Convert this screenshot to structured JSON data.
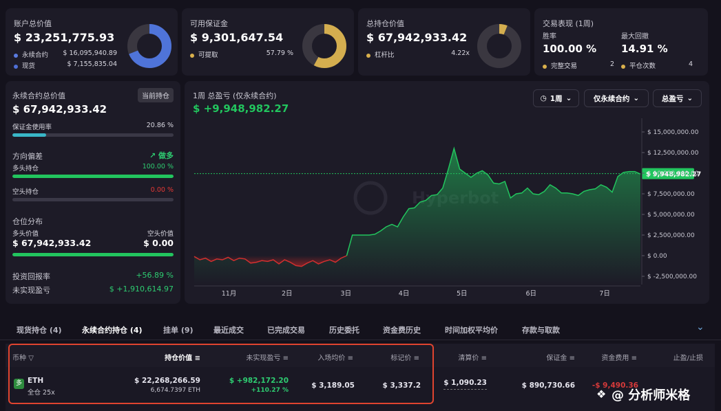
{
  "account": {
    "title": "账户总价值",
    "value": "$ 23,251,775.93",
    "items": [
      {
        "label": "永续合约",
        "value": "$ 16,095,940.89",
        "color": "#5a7be0"
      },
      {
        "label": "现货",
        "value": "$ 7,155,835.04",
        "color": "#4f6fd6"
      }
    ],
    "donut_fraction": 0.69,
    "donut_color": "#4f74d9"
  },
  "margin": {
    "title": "可用保证金",
    "value": "$ 9,301,647.54",
    "items": [
      {
        "label": "可提取",
        "value": "57.79 %",
        "color": "#d9b04c"
      }
    ],
    "donut_fraction": 0.5779,
    "donut_color": "#d4ae4f"
  },
  "position": {
    "title": "总持仓价值",
    "value": "$ 67,942,933.42",
    "items": [
      {
        "label": "杠杆比",
        "value": "4.22x",
        "color": "#d9b04c"
      }
    ],
    "donut_fraction": 0.06,
    "donut_color": "#d4ae4f"
  },
  "performance": {
    "title": "交易表现 (1周)",
    "win_label": "胜率",
    "win_value": "100.00 %",
    "dd_label": "最大回撤",
    "dd_value": "14.91 %",
    "completed_label": "完整交易",
    "completed_value": "2",
    "closed_label": "平仓次数",
    "closed_value": "4"
  },
  "perp": {
    "title": "永续合约总价值",
    "badge": "当前持仓",
    "value": "$ 67,942,933.42",
    "margin_label": "保证金使用率",
    "margin_value": "20.86 %",
    "margin_fraction": 0.2086,
    "bias_label": "方向偏差",
    "bias_value": "做多",
    "long_label": "多头持仓",
    "long_value": "100.00 %",
    "long_fraction": 1.0,
    "short_label": "空头持仓",
    "short_value": "0.00 %",
    "short_fraction": 0.0,
    "dist_label": "仓位分布",
    "long_val_label": "多头价值",
    "long_val": "$ 67,942,933.42",
    "short_val_label": "空头价值",
    "short_val": "$ 0.00",
    "roi_label": "投资回报率",
    "roi_value": "+56.89 %",
    "unreal_label": "未实现盈亏",
    "unreal_value": "$ +1,910,614.97"
  },
  "pnl_chart": {
    "title": "1周 总盈亏 (仅永续合约)",
    "value": "$ +9,948,982.27",
    "btn_period": "1周",
    "btn_scope": "仅永续合约",
    "btn_type": "总盈亏",
    "watermark": "Hyperbot"
  },
  "chart_data": {
    "type": "area",
    "title": "1周 总盈亏 (仅永续合约)",
    "x_ticks": [
      "11月",
      "2日",
      "3日",
      "4日",
      "5日",
      "6日",
      "7日"
    ],
    "y_ticks": [
      "$ 15,000,000.00",
      "$ 12,500,000.00",
      "$ 10,000,000.00",
      "$ 7,500,000.00",
      "$ 5,000,000.00",
      "$ 2,500,000.00",
      "$ 0.00",
      "$ -2,500,000.00"
    ],
    "ylim": [
      -3500000,
      16000000
    ],
    "current_label": "$ 9,948,982.27",
    "current": 9948982,
    "values": [
      -100000,
      -500000,
      -300000,
      -700000,
      -400000,
      -500000,
      -200000,
      -600000,
      -300000,
      -400000,
      -900000,
      -800000,
      -600000,
      -700000,
      -500000,
      -1000000,
      -500000,
      -800000,
      -1200000,
      -1300000,
      -900000,
      -600000,
      -1000000,
      -700000,
      -500000,
      -800000,
      -300000,
      0,
      2500000,
      2500000,
      2500000,
      2500000,
      2600000,
      3000000,
      3500000,
      3800000,
      3500000,
      4700000,
      5700000,
      5800000,
      6500000,
      6700000,
      7300000,
      7400000,
      8200000,
      10500000,
      13000000,
      10500000,
      10000000,
      9500000,
      10000000,
      10300000,
      9800000,
      8800000,
      8700000,
      9000000,
      7000000,
      7500000,
      7600000,
      8200000,
      7500000,
      7400000,
      7800000,
      8600000,
      8200000,
      7600000,
      7600000,
      7500000,
      7300000,
      7800000,
      8000000,
      8100000,
      8600000,
      8300000,
      7700000,
      9600000,
      10100000,
      10200000,
      10200000,
      9900000
    ]
  },
  "tabs": [
    "现货持仓 (4)",
    "永续合约持仓 (4)",
    "挂单 (9)",
    "最近成交",
    "已完成交易",
    "历史委托",
    "资金费历史",
    "时间加权平均价",
    "存款与取款"
  ],
  "table": {
    "headers": [
      "币种",
      "持仓价值",
      "未实现盈亏",
      "入场均价",
      "标记价",
      "清算价",
      "保证金",
      "资金费用",
      "止盈/止损"
    ],
    "row": {
      "coin": "ETH",
      "mode": "全仓 25x",
      "value": "$ 22,268,266.59",
      "size": "6,674.7397 ETH",
      "pnl": "$ +982,172.20",
      "pnl_pct": "+110.27 %",
      "entry": "$ 3,189.05",
      "mark": "$ 3,337.2",
      "liq": "$ 1,090.23",
      "margin": "$ 890,730.66",
      "funding": "-$ 9,490.36"
    }
  },
  "watermark": "@ 分析师米格"
}
